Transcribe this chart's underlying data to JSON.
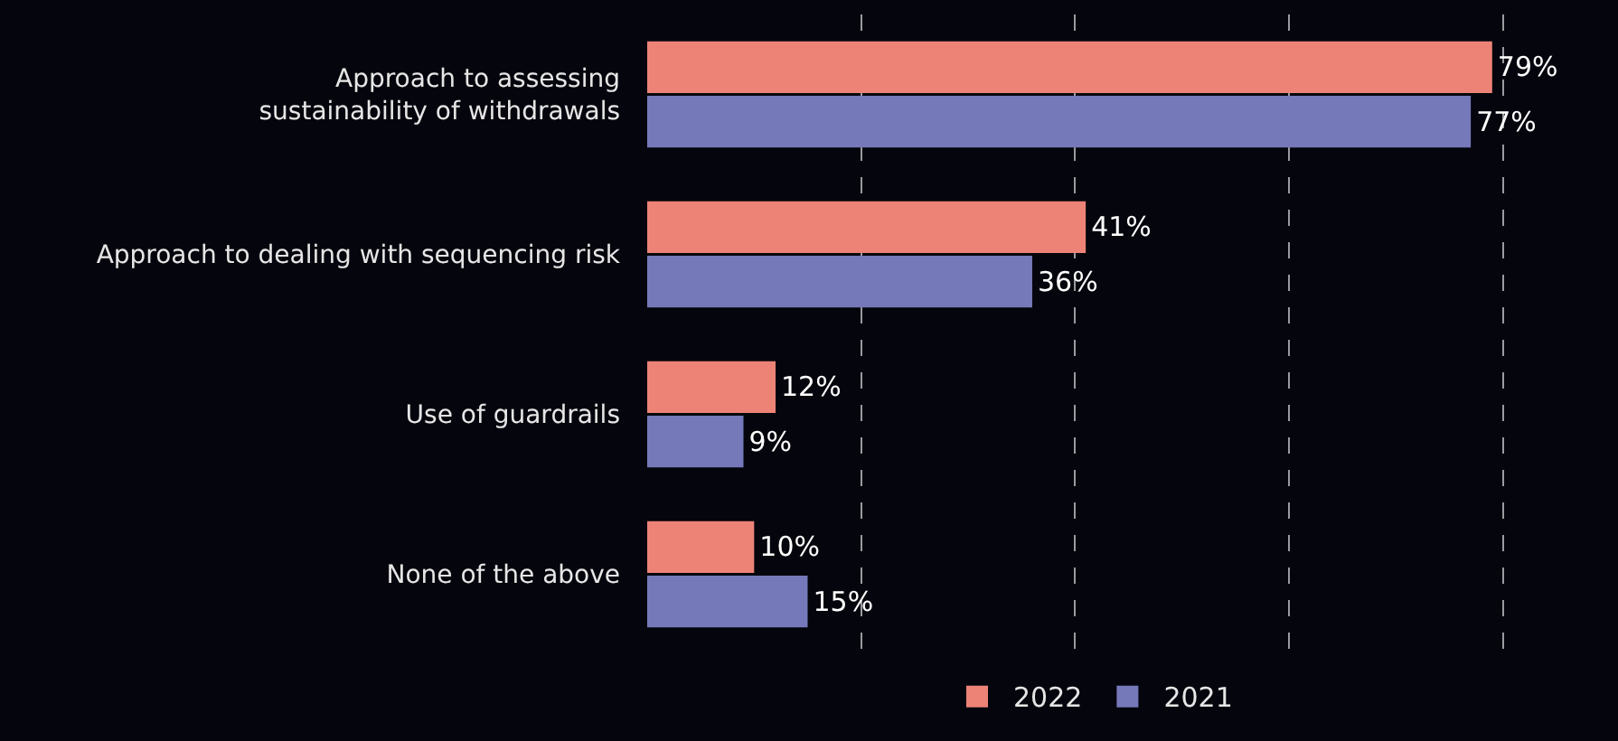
{
  "chart_data": {
    "type": "bar",
    "orientation": "horizontal",
    "categories": [
      "Approach to assessing\nsustainability of withdrawals",
      "Approach to dealing with sequencing risk",
      "Use of guardrails",
      "None of the above"
    ],
    "series": [
      {
        "name": "2022",
        "color": "#ed8377",
        "values": [
          79,
          41,
          12,
          10
        ],
        "value_labels": [
          "79%",
          "41%",
          "12%",
          "10%"
        ]
      },
      {
        "name": "2021",
        "color": "#7578b9",
        "values": [
          77,
          36,
          9,
          15
        ],
        "value_labels": [
          "77%",
          "36%",
          "9%",
          "15%"
        ]
      }
    ],
    "tick_labels": "y",
    "grid": "x",
    "legend": "bottom"
  }
}
